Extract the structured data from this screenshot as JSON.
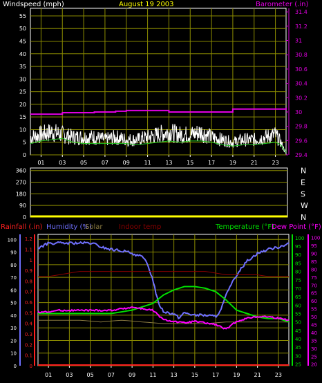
{
  "colors": {
    "background": "#000000",
    "frame": "#ffffff",
    "grid": "#8c8c00",
    "windspeed": "#ffffff",
    "windspeed_avg": "#22cc22",
    "barometer": "#e000e0",
    "wind_dir": "#ffff00",
    "rainfall": "#ff2020",
    "humidity": "#7070ff",
    "solar": "#8a7a40",
    "indoor_temp": "#8b0000",
    "temperature": "#00e000",
    "dew_point": "#ff00ff",
    "title": "#ffff00",
    "tick_white": "#ffffff"
  },
  "chart_data": [
    {
      "type": "line",
      "id": "wind_barometer",
      "title": "August 19 2003",
      "left_axis_label": "Windspeed (mph)",
      "right_axis_label": "Barometer (.in)",
      "x_ticks": [
        "01",
        "03",
        "05",
        "07",
        "09",
        "11",
        "13",
        "15",
        "17",
        "19",
        "21",
        "23"
      ],
      "x_range": [
        0,
        24
      ],
      "left_ticks": [
        "0",
        "5",
        "10",
        "15",
        "20",
        "25",
        "30",
        "35",
        "40",
        "45",
        "50",
        "55"
      ],
      "left_range": [
        0,
        58
      ],
      "right_ticks": [
        "29.4",
        "29.6",
        "29.8",
        "30",
        "30.2",
        "30.4",
        "30.6",
        "30.8",
        "31",
        "31.2",
        "31.4"
      ],
      "right_range": [
        29.4,
        31.45
      ],
      "grid": true,
      "series": [
        {
          "key": "windspeed",
          "axis": "left",
          "style": "noisy",
          "x": [
            0,
            1,
            2,
            3,
            4,
            5,
            6,
            7,
            8,
            9,
            10,
            11,
            12,
            13,
            14,
            15,
            16,
            17,
            18,
            19,
            20,
            21,
            22,
            23,
            23.5,
            24
          ],
          "y": [
            7,
            8,
            9,
            8,
            7,
            7,
            7,
            6,
            7,
            6,
            6,
            7,
            8,
            9,
            8,
            8,
            9,
            7,
            6,
            5,
            6,
            6,
            7,
            8,
            5,
            0.5
          ]
        },
        {
          "key": "windspeed_avg",
          "axis": "left",
          "x": [
            0,
            1,
            2,
            3,
            4,
            5,
            6,
            7,
            8,
            9,
            10,
            11,
            12,
            13,
            14,
            15,
            16,
            17,
            18,
            19,
            20,
            21,
            22,
            23,
            23.5,
            24
          ],
          "y": [
            4.5,
            5.5,
            6,
            6.5,
            5,
            4.5,
            4.5,
            4.5,
            4.5,
            4.5,
            4,
            4.5,
            5,
            5.5,
            5,
            5.5,
            5.5,
            5,
            4,
            3.5,
            4,
            4,
            4.5,
            5,
            4,
            1
          ]
        },
        {
          "key": "barometer",
          "axis": "right",
          "style": "step",
          "x": [
            0,
            2,
            3,
            4,
            6,
            8,
            9,
            12,
            13,
            19,
            24
          ],
          "y": [
            29.97,
            29.97,
            29.99,
            29.99,
            30.0,
            30.01,
            30.02,
            30.02,
            30.0,
            30.04,
            30.06
          ]
        }
      ]
    },
    {
      "type": "line",
      "id": "wind_direction",
      "x_range": [
        0,
        24
      ],
      "left_ticks": [
        "0",
        "90",
        "180",
        "270",
        "360"
      ],
      "left_range": [
        0,
        380
      ],
      "right_ticks": [
        "N",
        "W",
        "S",
        "E",
        "N"
      ],
      "grid": true,
      "series": [
        {
          "key": "wind_dir",
          "axis": "left",
          "x": [
            0,
            24
          ],
          "y": [
            0,
            0
          ]
        }
      ]
    },
    {
      "type": "line",
      "id": "temp_humidity",
      "legend": {
        "rainfall": "Rainfall (.in)",
        "humidity": "Humidity (%)",
        "solar": "Solar",
        "indoor_temp": "Indoor temp",
        "temperature": "Temperature (°F)",
        "dew_point": "Dew Point (°F)"
      },
      "x_ticks": [
        "01",
        "03",
        "05",
        "07",
        "09",
        "11",
        "13",
        "15",
        "17",
        "19",
        "21",
        "23"
      ],
      "x_range": [
        0,
        24
      ],
      "humidity_ticks": [
        "0",
        "10",
        "20",
        "30",
        "40",
        "50",
        "60",
        "70",
        "80",
        "90",
        "100"
      ],
      "humidity_range": [
        0,
        104
      ],
      "rain_ticks": [
        "0",
        "0.1",
        "0.2",
        "0.3",
        "0.4",
        "0.5",
        "0.6",
        "0.7",
        "0.8",
        "0.9",
        "1",
        "1.1",
        "1.2"
      ],
      "rain_range": [
        0,
        1.24
      ],
      "temp_ticks": [
        "25",
        "30",
        "35",
        "40",
        "45",
        "50",
        "55",
        "60",
        "65",
        "70",
        "75",
        "80",
        "85",
        "90",
        "95",
        "100"
      ],
      "temp_range": [
        24,
        102
      ],
      "dew_ticks": [
        "20",
        "25",
        "30",
        "35",
        "40",
        "45",
        "50",
        "55",
        "60",
        "65",
        "70",
        "75",
        "80",
        "85",
        "90",
        "95",
        "100"
      ],
      "dew_range": [
        19,
        102
      ],
      "grid": true,
      "series": [
        {
          "key": "rainfall",
          "axis": "rain",
          "x": [
            0,
            24
          ],
          "y": [
            0,
            0
          ]
        },
        {
          "key": "humidity",
          "axis": "humidity",
          "x": [
            0,
            0.5,
            1,
            2,
            3,
            4,
            5,
            5.5,
            6,
            7,
            8,
            9,
            10,
            10.5,
            11,
            11.5,
            12,
            13,
            13.5,
            14,
            15,
            16,
            17,
            17.5,
            18,
            18.5,
            19,
            20,
            21,
            22,
            23,
            24
          ],
          "y": [
            93,
            95,
            97,
            97,
            97,
            97,
            97,
            96,
            94,
            92,
            91,
            89,
            86,
            80,
            68,
            50,
            43,
            41,
            38,
            42,
            40,
            40,
            39,
            44,
            56,
            64,
            72,
            83,
            89,
            92,
            94,
            97
          ]
        },
        {
          "key": "indoor_temp",
          "axis": "temp",
          "x": [
            0,
            1,
            2,
            3,
            4,
            5,
            6,
            7,
            8,
            9,
            10,
            11,
            12,
            13,
            14,
            15,
            16,
            17,
            18,
            19,
            20,
            21,
            22,
            23,
            24
          ],
          "y": [
            77,
            77,
            78,
            79,
            80,
            80,
            80,
            80,
            80,
            80,
            80,
            80,
            80,
            80,
            80,
            80,
            80,
            79,
            78,
            78,
            78,
            78,
            77,
            77,
            77
          ]
        },
        {
          "key": "solar",
          "axis": "temp",
          "x": [
            0,
            2,
            4,
            6,
            8,
            10,
            12,
            14,
            16,
            18,
            20,
            22,
            24
          ],
          "y": [
            51,
            51,
            51,
            50,
            51,
            50,
            49,
            49,
            49,
            50,
            50,
            50,
            50
          ]
        },
        {
          "key": "temperature",
          "axis": "temp",
          "x": [
            0,
            1,
            2,
            3,
            4,
            5,
            6,
            7,
            8,
            9,
            10,
            11,
            12,
            13,
            14,
            15,
            16,
            17,
            18,
            19,
            20,
            21,
            22,
            23,
            24
          ],
          "y": [
            55,
            55,
            55,
            55,
            55,
            55,
            55,
            55,
            56,
            57,
            59,
            61,
            66,
            69,
            71,
            71,
            70,
            68,
            63,
            57,
            55,
            53,
            52,
            52,
            50
          ]
        },
        {
          "key": "dew_point",
          "axis": "dew",
          "x": [
            0,
            1,
            2,
            3,
            4,
            5,
            6,
            7,
            8,
            9,
            10,
            11,
            12,
            13,
            14,
            15,
            16,
            17,
            18,
            19,
            20,
            21,
            22,
            23,
            24
          ],
          "y": [
            53,
            53,
            54,
            54,
            54,
            54,
            54,
            54,
            55,
            56,
            55,
            54,
            48,
            47,
            46,
            47,
            46,
            45,
            42,
            47,
            49,
            50,
            50,
            49,
            48
          ]
        }
      ]
    }
  ]
}
